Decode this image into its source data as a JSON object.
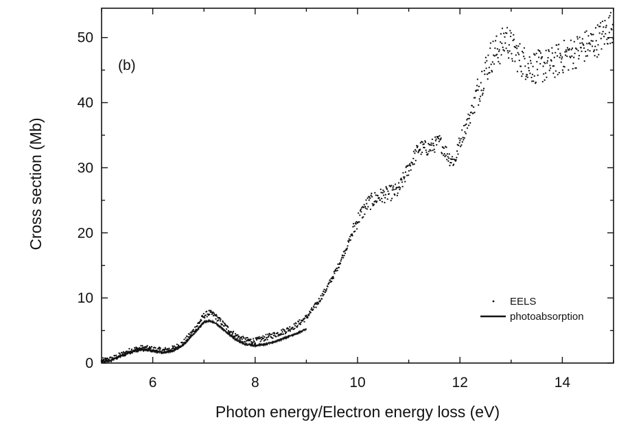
{
  "chart_data": {
    "type": "scatter",
    "panel_label": "(b)",
    "xlabel": "Photon energy/Electron energy loss (eV)",
    "ylabel": "Cross section (Mb)",
    "xlim": [
      5.0,
      15.0
    ],
    "ylim": [
      0,
      54.5
    ],
    "xticks": [
      6,
      8,
      10,
      12,
      14
    ],
    "yticks": [
      0,
      10,
      20,
      30,
      40,
      50
    ],
    "grid": false,
    "legend": {
      "position": "right",
      "entries": [
        "EELS",
        "photoabsorption"
      ]
    },
    "series": [
      {
        "name": "EELS",
        "style": "dots",
        "color": "#111111",
        "x": [
          5.0,
          5.2,
          5.4,
          5.6,
          5.8,
          6.0,
          6.2,
          6.4,
          6.6,
          6.8,
          7.0,
          7.1,
          7.2,
          7.4,
          7.6,
          7.8,
          8.0,
          8.2,
          8.4,
          8.6,
          8.8,
          9.0,
          9.2,
          9.4,
          9.6,
          9.8,
          10.0,
          10.2,
          10.4,
          10.6,
          10.8,
          11.0,
          11.2,
          11.4,
          11.6,
          11.8,
          11.9,
          12.0,
          12.2,
          12.4,
          12.6,
          12.8,
          12.9,
          13.0,
          13.2,
          13.4,
          13.6,
          13.8,
          14.0,
          14.2,
          14.4,
          14.6,
          14.8,
          15.0
        ],
        "y": [
          0.3,
          0.6,
          1.3,
          2.0,
          2.3,
          2.1,
          1.9,
          2.2,
          3.1,
          5.0,
          7.3,
          7.7,
          7.4,
          5.8,
          4.3,
          3.5,
          3.4,
          3.9,
          4.4,
          5.0,
          5.8,
          7.0,
          9.0,
          11.5,
          14.5,
          18.0,
          22.0,
          24.5,
          25.5,
          26.0,
          26.5,
          30.0,
          33.0,
          33.0,
          34.0,
          31.5,
          31.0,
          34.0,
          38.0,
          43.0,
          47.0,
          48.5,
          50.0,
          48.5,
          46.5,
          45.5,
          45.5,
          46.0,
          47.0,
          47.5,
          48.5,
          49.0,
          50.5,
          52.0
        ]
      },
      {
        "name": "photoabsorption",
        "style": "line",
        "color": "#111111",
        "x": [
          5.0,
          5.2,
          5.4,
          5.6,
          5.8,
          6.0,
          6.2,
          6.4,
          6.6,
          6.8,
          7.0,
          7.1,
          7.2,
          7.4,
          7.6,
          7.8,
          8.0,
          8.2,
          8.4,
          8.6,
          8.8,
          9.0
        ],
        "y": [
          0.2,
          0.5,
          1.2,
          1.8,
          2.1,
          1.9,
          1.6,
          1.9,
          2.8,
          4.5,
          6.3,
          6.5,
          6.3,
          5.0,
          3.7,
          2.9,
          2.7,
          2.9,
          3.3,
          3.9,
          4.5,
          5.2
        ]
      }
    ]
  }
}
